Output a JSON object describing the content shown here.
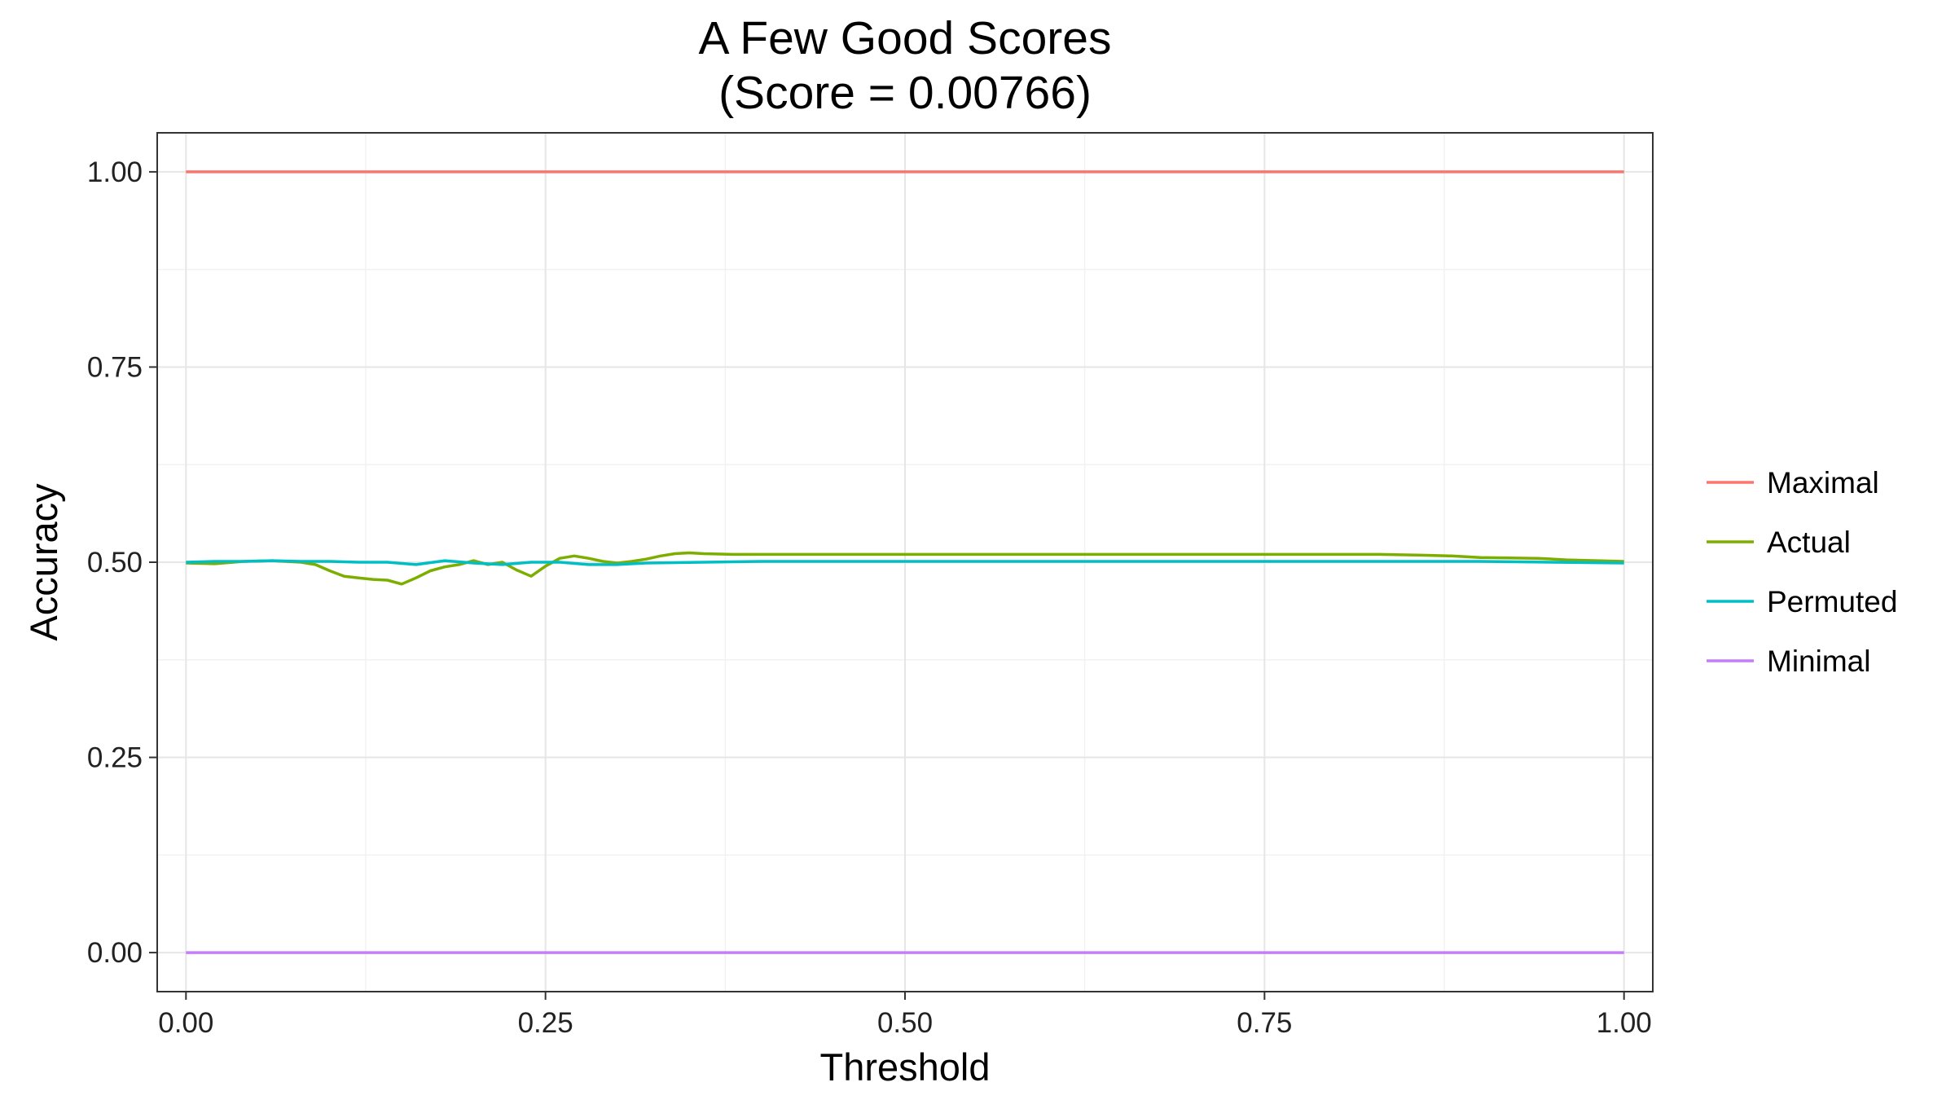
{
  "chart_data": {
    "type": "line",
    "title": "A Few Good Scores",
    "subtitle": "(Score = 0.00766)",
    "xlabel": "Threshold",
    "ylabel": "Accuracy",
    "xlim": [
      -0.02,
      1.02
    ],
    "ylim": [
      -0.05,
      1.05
    ],
    "x_ticks": [
      0,
      0.25,
      0.5,
      0.75,
      1
    ],
    "x_tick_labels": [
      "0.00",
      "0.25",
      "0.50",
      "0.75",
      "1.00"
    ],
    "y_ticks": [
      0,
      0.25,
      0.5,
      0.75,
      1
    ],
    "y_tick_labels": [
      "0.00",
      "0.25",
      "0.50",
      "0.75",
      "1.00"
    ],
    "grid": true,
    "legend_position": "right",
    "series": [
      {
        "name": "Maximal",
        "color": "#F8766D",
        "x": [
          0,
          1
        ],
        "y": [
          1,
          1
        ]
      },
      {
        "name": "Actual",
        "color": "#7CAE00",
        "x": [
          0,
          0.02,
          0.04,
          0.06,
          0.08,
          0.09,
          0.1,
          0.11,
          0.12,
          0.13,
          0.14,
          0.15,
          0.16,
          0.17,
          0.18,
          0.19,
          0.2,
          0.21,
          0.22,
          0.23,
          0.24,
          0.25,
          0.26,
          0.27,
          0.28,
          0.29,
          0.3,
          0.31,
          0.32,
          0.33,
          0.34,
          0.35,
          0.36,
          0.38,
          0.42,
          0.5,
          0.6,
          0.7,
          0.8,
          0.83,
          0.86,
          0.88,
          0.9,
          0.94,
          0.96,
          1
        ],
        "y": [
          0.499,
          0.498,
          0.501,
          0.502,
          0.5,
          0.497,
          0.489,
          0.482,
          0.48,
          0.478,
          0.477,
          0.472,
          0.48,
          0.489,
          0.494,
          0.497,
          0.502,
          0.497,
          0.5,
          0.49,
          0.482,
          0.495,
          0.505,
          0.508,
          0.505,
          0.501,
          0.499,
          0.501,
          0.504,
          0.508,
          0.511,
          0.512,
          0.511,
          0.51,
          0.51,
          0.51,
          0.51,
          0.51,
          0.51,
          0.51,
          0.509,
          0.508,
          0.506,
          0.505,
          0.503,
          0.501
        ]
      },
      {
        "name": "Permuted",
        "color": "#00BFC4",
        "x": [
          0,
          0.02,
          0.04,
          0.06,
          0.08,
          0.1,
          0.12,
          0.14,
          0.16,
          0.18,
          0.2,
          0.22,
          0.24,
          0.26,
          0.28,
          0.3,
          0.32,
          0.36,
          0.4,
          0.5,
          0.6,
          0.7,
          0.8,
          0.9,
          0.95,
          1
        ],
        "y": [
          0.5,
          0.501,
          0.501,
          0.502,
          0.501,
          0.501,
          0.5,
          0.5,
          0.497,
          0.502,
          0.499,
          0.497,
          0.5,
          0.5,
          0.497,
          0.497,
          0.499,
          0.5,
          0.501,
          0.501,
          0.501,
          0.501,
          0.501,
          0.501,
          0.5,
          0.499
        ]
      },
      {
        "name": "Minimal",
        "color": "#C77CFF",
        "x": [
          0,
          1
        ],
        "y": [
          0,
          0
        ]
      }
    ]
  }
}
